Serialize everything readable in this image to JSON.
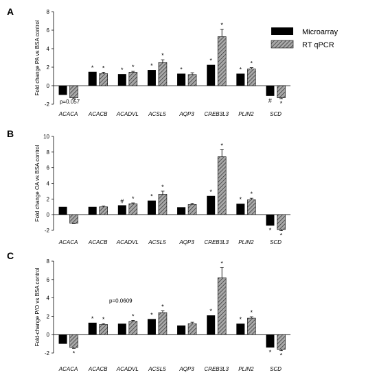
{
  "legend": {
    "series": [
      {
        "name": "Microarray",
        "style": "solid",
        "color": "#000000"
      },
      {
        "name": "RT qPCR",
        "style": "hatched",
        "color": "#7a7a7a"
      }
    ]
  },
  "chart_data": [
    {
      "panel": "A",
      "type": "bar",
      "ylabel": "Fold change PA vs BSA control",
      "ylim": [
        -2,
        8
      ],
      "yticks": [
        -2,
        0,
        2,
        4,
        6,
        8
      ],
      "categories": [
        "ACACA",
        "ACACB",
        "ACADVL",
        "ACSL5",
        "AQP3",
        "CREB3L3",
        "PLIN2",
        "SCD"
      ],
      "series": [
        {
          "name": "Microarray",
          "values": [
            -1.0,
            1.5,
            1.25,
            1.7,
            1.3,
            2.25,
            1.3,
            -1.1
          ],
          "errors": [
            0,
            0,
            0,
            0,
            0,
            0,
            0,
            0
          ],
          "marks": [
            "",
            "*",
            "*",
            "*",
            "*",
            "*",
            "*",
            "#"
          ]
        },
        {
          "name": "RT qPCR",
          "values": [
            -1.3,
            1.3,
            1.45,
            2.5,
            1.2,
            5.3,
            1.8,
            -1.3
          ],
          "errors": [
            0.1,
            0.15,
            0.1,
            0.3,
            0.2,
            0.8,
            0.15,
            0.1
          ],
          "marks": [
            "",
            "*",
            "*",
            "*",
            "",
            "*",
            "*",
            "*"
          ]
        }
      ],
      "annotation": {
        "text": "p=0.057",
        "category": "ACACA"
      }
    },
    {
      "panel": "B",
      "type": "bar",
      "ylabel": "Fold change OA vs BSA control",
      "ylim": [
        -2,
        10
      ],
      "yticks": [
        -2,
        0,
        2,
        4,
        6,
        8,
        10
      ],
      "categories": [
        "ACACA",
        "ACACB",
        "ACADVL",
        "ACSL5",
        "AQP3",
        "CREB3L3",
        "PLIN2",
        "SCD"
      ],
      "series": [
        {
          "name": "Microarray",
          "values": [
            1.0,
            1.0,
            1.2,
            1.8,
            0.95,
            2.4,
            1.4,
            -1.4
          ],
          "errors": [
            0,
            0,
            0,
            0,
            0,
            0,
            0,
            0
          ],
          "marks": [
            "",
            "",
            "#",
            "*",
            "",
            "*",
            "*",
            "*"
          ]
        },
        {
          "name": "RT qPCR",
          "values": [
            -1.1,
            1.0,
            1.4,
            2.6,
            1.3,
            7.4,
            1.9,
            -1.9
          ],
          "errors": [
            0.05,
            0.1,
            0.1,
            0.4,
            0.15,
            0.9,
            0.2,
            0.15
          ],
          "marks": [
            "",
            "",
            "*",
            "*",
            "",
            "*",
            "*",
            "*"
          ]
        }
      ]
    },
    {
      "panel": "C",
      "type": "bar",
      "ylabel": "Fold-change P/O vs BSA control",
      "ylim": [
        -2,
        8
      ],
      "yticks": [
        -2,
        0,
        2,
        4,
        6,
        8
      ],
      "categories": [
        "ACACA",
        "ACACB",
        "ACADVL",
        "ACSL5",
        "AQP3",
        "CREB3L3",
        "PLIN2",
        "SCD"
      ],
      "series": [
        {
          "name": "Microarray",
          "values": [
            -1.0,
            1.3,
            1.2,
            1.7,
            1.0,
            2.1,
            1.2,
            -1.4
          ],
          "errors": [
            0,
            0,
            0,
            0,
            0,
            0,
            0,
            0
          ],
          "marks": [
            "",
            "*",
            "",
            "*",
            "",
            "*",
            "*",
            "*"
          ]
        },
        {
          "name": "RT qPCR",
          "values": [
            -1.4,
            1.1,
            1.45,
            2.4,
            1.2,
            6.2,
            1.8,
            -1.6
          ],
          "errors": [
            0.1,
            0.1,
            0.1,
            0.2,
            0.15,
            1.1,
            0.15,
            0.15
          ],
          "marks": [
            "*",
            "*",
            "*",
            "*",
            "",
            "*",
            "*",
            "*"
          ]
        }
      ],
      "annotation": {
        "text": "p=0.0609",
        "category": "ACADVL"
      }
    }
  ]
}
